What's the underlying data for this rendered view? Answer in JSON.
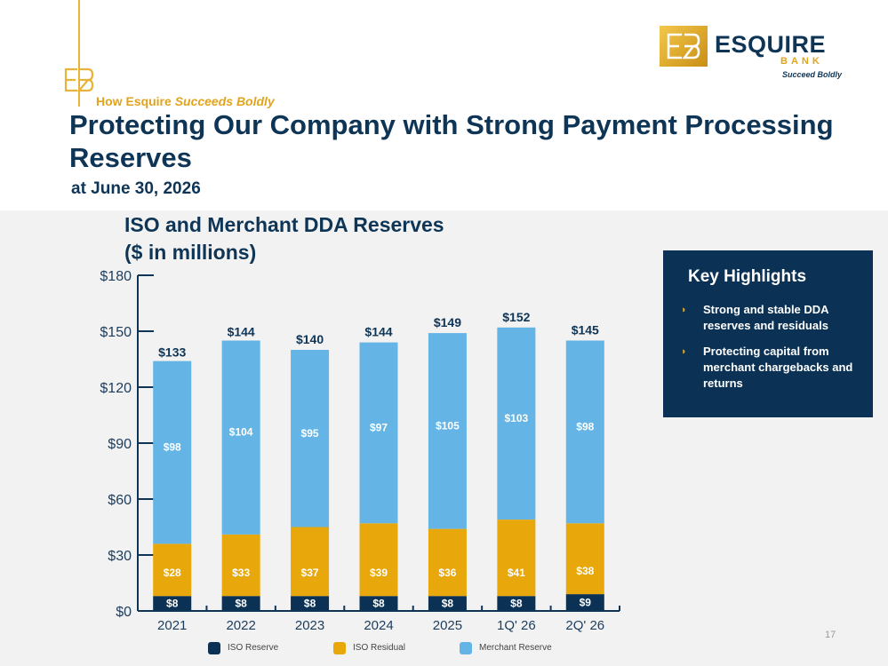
{
  "header": {
    "kicker_prefix": "How Esquire",
    "kicker_emphasis": "Succeeds Boldly",
    "title": "Protecting Our Company with Strong Payment Processing Reserves",
    "subtitle": "at June 30, 2026"
  },
  "logo": {
    "name": "ESQUIRE",
    "bank": "BANK",
    "tagline": "Succeed Boldly"
  },
  "highlights": {
    "title": "Key Highlights",
    "items": [
      "Strong and stable DDA reserves and residuals",
      "Protecting capital from merchant chargebacks and returns"
    ]
  },
  "page_number": "17",
  "colors": {
    "navy": "#0e3556",
    "gold": "#e2a41c",
    "iso_reserve": "#0b3254",
    "iso_residual": "#e8a70b",
    "merchant_reserve": "#64b5e6"
  },
  "chart_data": {
    "type": "bar",
    "stacked": true,
    "title_lines": [
      "ISO and Merchant DDA Reserves",
      "($ in millions)"
    ],
    "categories": [
      "2021",
      "2022",
      "2023",
      "2024",
      "2025",
      "1Q' 26",
      "2Q' 26"
    ],
    "series": [
      {
        "name": "ISO Reserve",
        "values": [
          8,
          8,
          8,
          8,
          8,
          8,
          9
        ],
        "labels": [
          "$8",
          "$8",
          "$8",
          "$8",
          "$8",
          "$8",
          "$9"
        ],
        "color": "#0b3254",
        "label_color": "#ffffff"
      },
      {
        "name": "ISO Residual",
        "values": [
          28,
          33,
          37,
          39,
          36,
          41,
          38
        ],
        "labels": [
          "$28",
          "$33",
          "$37",
          "$39",
          "$36",
          "$41",
          "$38"
        ],
        "color": "#e8a70b",
        "label_color": "#ffffff"
      },
      {
        "name": "Merchant Reserve",
        "values": [
          98,
          104,
          95,
          97,
          105,
          103,
          98
        ],
        "labels": [
          "$98",
          "$104",
          "$95",
          "$97",
          "$105",
          "$103",
          "$98"
        ],
        "color": "#64b5e6",
        "label_color": "#ffffff"
      }
    ],
    "totals": [
      133,
      144,
      140,
      144,
      149,
      152,
      145
    ],
    "total_labels": [
      "$133",
      "$144",
      "$140",
      "$144",
      "$149",
      "$152",
      "$145"
    ],
    "ylim": [
      0,
      180
    ],
    "yticks": [
      0,
      30,
      60,
      90,
      120,
      150,
      180
    ],
    "ytick_labels": [
      "$0",
      "$30",
      "$60",
      "$90",
      "$120",
      "$150",
      "$180"
    ],
    "grid": false,
    "legend_position": "bottom"
  }
}
